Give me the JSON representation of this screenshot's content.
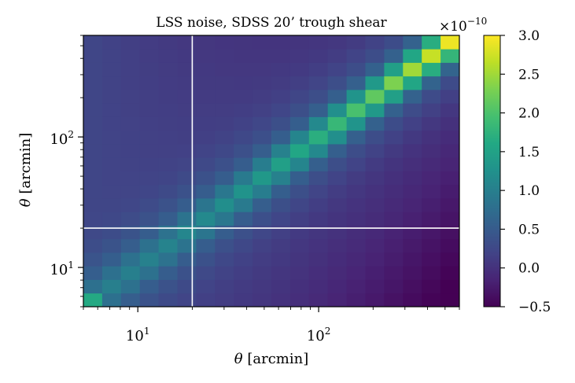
{
  "chart_data": {
    "type": "heatmap",
    "title": "LSS noise, SDSS 20’ trough shear",
    "xlabel": "θ [arcmin]",
    "ylabel": "θ [arcmin]",
    "x_scale": "log",
    "y_scale": "log",
    "xlim": [
      5,
      600
    ],
    "ylim": [
      5,
      600
    ],
    "x_ticks": [
      10,
      100
    ],
    "y_ticks": [
      10,
      100
    ],
    "x_tick_labels": [
      "10",
      "100"
    ],
    "y_tick_labels": [
      "10",
      "100"
    ],
    "reference_lines": {
      "x": 20,
      "y": 20
    },
    "bins": 20,
    "colormap": "viridis",
    "colorbar": {
      "min": -0.5,
      "max": 3.0,
      "ticks": [
        3.0,
        2.5,
        2.0,
        1.5,
        1.0,
        0.5,
        0.0,
        -0.5
      ],
      "tick_labels": [
        "3.0",
        "2.5",
        "2.0",
        "1.5",
        "1.0",
        "0.5",
        "0.0",
        "−0.5"
      ],
      "offset_text": "×10",
      "offset_exponent": "−10"
    },
    "grid": false
  }
}
